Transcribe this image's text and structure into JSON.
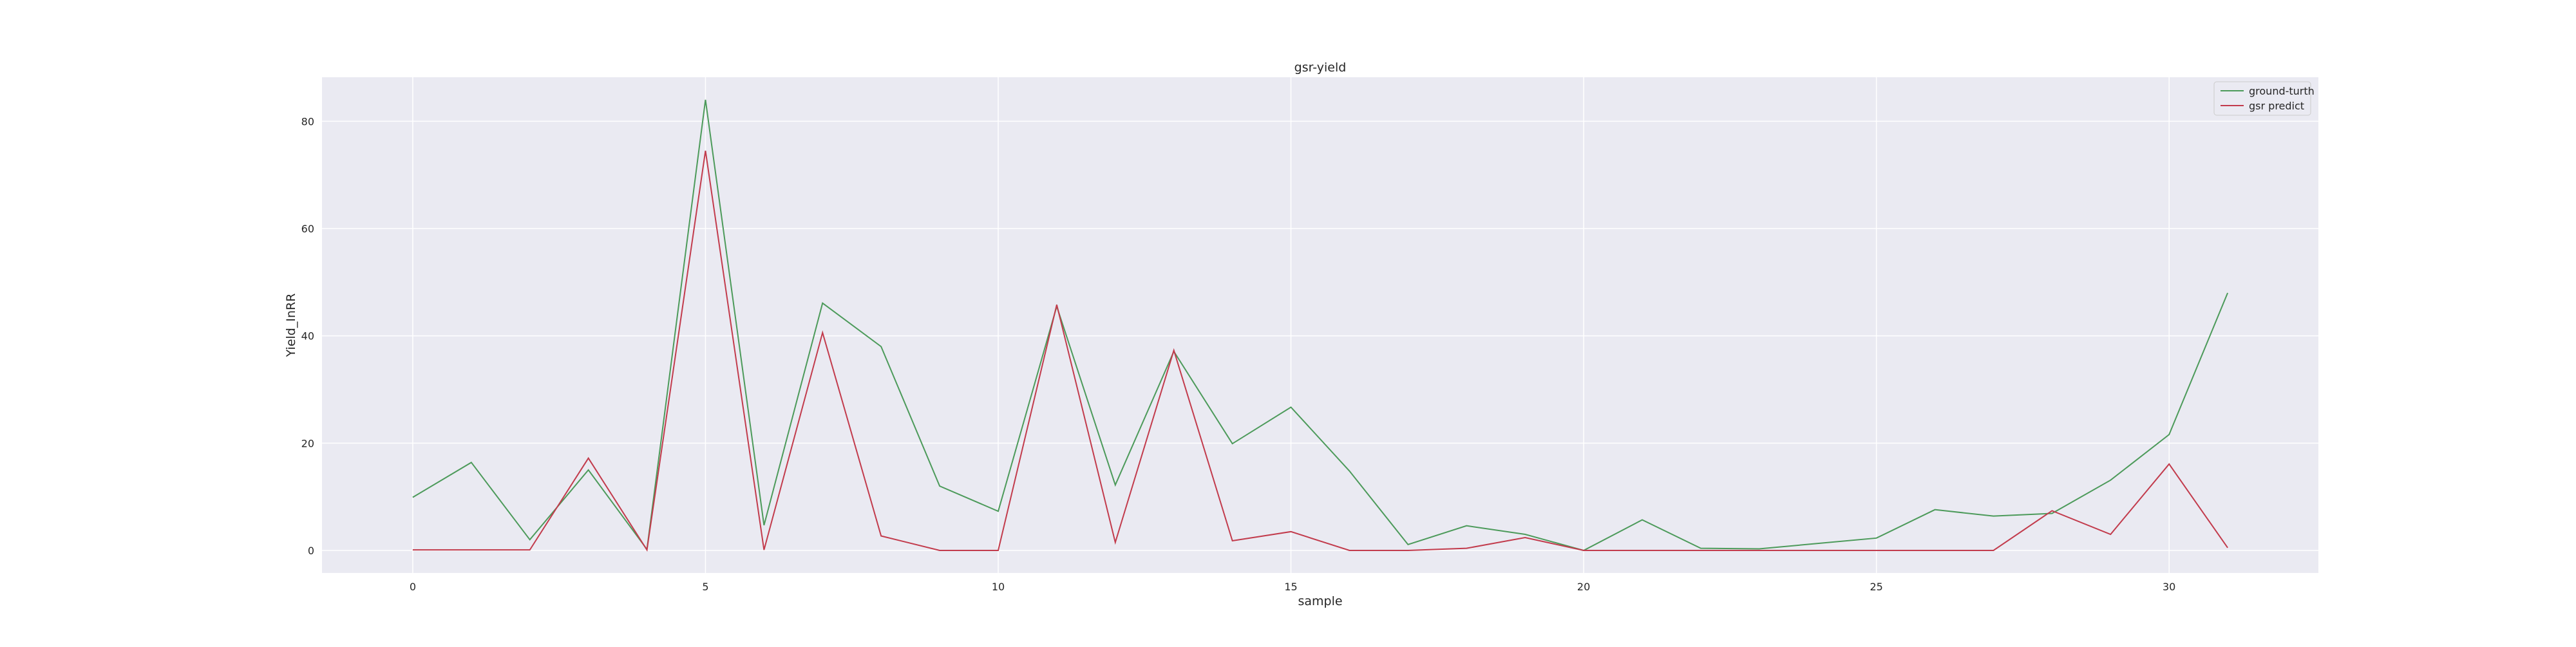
{
  "chart_data": {
    "type": "line",
    "title": "gsr-yield",
    "xlabel": "sample",
    "ylabel": "Yield_InRR",
    "x": [
      0,
      1,
      2,
      3,
      4,
      5,
      6,
      7,
      8,
      9,
      10,
      11,
      12,
      13,
      14,
      15,
      16,
      17,
      18,
      19,
      20,
      21,
      22,
      23,
      24,
      25,
      26,
      27,
      28,
      29,
      30,
      31
    ],
    "xlim": [
      -1.55,
      32.55
    ],
    "ylim": [
      -4.2,
      88.2
    ],
    "xticks": [
      0,
      5,
      10,
      15,
      20,
      25,
      30
    ],
    "yticks": [
      0,
      20,
      40,
      60,
      80
    ],
    "grid": true,
    "legend": "top-right",
    "series": [
      {
        "name": "ground-turth",
        "color": "#4c9a5a",
        "values": [
          9.9,
          16.4,
          2.0,
          15.0,
          0.2,
          84.0,
          4.7,
          46.1,
          38.0,
          12.0,
          7.3,
          45.5,
          12.2,
          37.1,
          19.9,
          26.7,
          14.8,
          1.1,
          4.6,
          3.0,
          0.0,
          5.7,
          0.4,
          0.3,
          1.3,
          2.3,
          7.6,
          6.4,
          6.9,
          13.1,
          21.6,
          48.0
        ]
      },
      {
        "name": "gsr predict",
        "color": "#c23b4c",
        "values": [
          0.1,
          0.1,
          0.1,
          17.2,
          0.1,
          74.5,
          0.1,
          40.6,
          2.7,
          0.0,
          0.0,
          45.8,
          1.5,
          37.3,
          1.8,
          3.5,
          0.0,
          0.0,
          0.4,
          2.4,
          0.0,
          0.0,
          0.0,
          0.0,
          0.0,
          0.0,
          0.0,
          0.0,
          7.4,
          3.0,
          16.1,
          0.5
        ]
      }
    ]
  }
}
